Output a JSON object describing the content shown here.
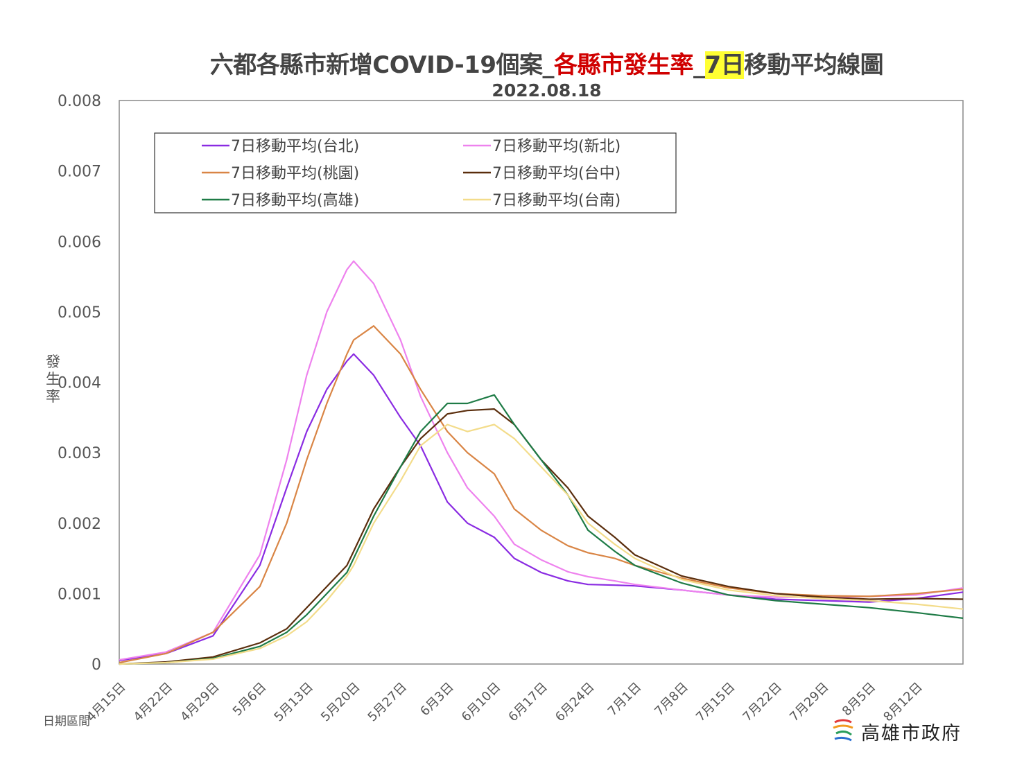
{
  "title": {
    "part1": "六都各縣市新增COVID-19個案_",
    "part2": "各縣市發生率",
    "part3": "_",
    "part4": "7日",
    "part5": "移動平均線圖"
  },
  "subtitle": "2022.08.18",
  "ylabel": "發生率",
  "xnote": "日期區間",
  "logo_text": "高雄市政府",
  "colors": {
    "taipei": "#8a2be2",
    "newtaipei": "#ee82ee",
    "taoyuan": "#d98545",
    "taichung": "#5a2d0c",
    "kaohsiung": "#1e7b46",
    "tainan": "#f3dc8a"
  },
  "chart_data": {
    "type": "line",
    "title": "六都各縣市新增COVID-19個案_各縣市發生率_7日移動平均線圖",
    "xlabel": "日期區間",
    "ylabel": "發生率",
    "ylim": [
      0,
      0.008
    ],
    "yticks": [
      "0",
      "0.001",
      "0.002",
      "0.003",
      "0.004",
      "0.005",
      "0.006",
      "0.007",
      "0.008"
    ],
    "xlim_days": [
      0,
      126
    ],
    "xtick_days": [
      0,
      7,
      14,
      21,
      28,
      35,
      42,
      49,
      56,
      63,
      70,
      77,
      84,
      91,
      98,
      105,
      112,
      119
    ],
    "xtick_labels": [
      "4月15日",
      "4月22日",
      "4月29日",
      "5月6日",
      "5月13日",
      "5月20日",
      "5月27日",
      "6月3日",
      "6月10日",
      "6月17日",
      "6月24日",
      "7月1日",
      "7月8日",
      "7月15日",
      "7月22日",
      "7月29日",
      "8月5日",
      "8月12日"
    ],
    "x_days": [
      0,
      7,
      14,
      21,
      25,
      28,
      31,
      34,
      35,
      38,
      42,
      45,
      49,
      52,
      56,
      59,
      63,
      67,
      70,
      74,
      77,
      84,
      91,
      98,
      105,
      112,
      119,
      126
    ],
    "legend_position": "top-left",
    "series": [
      {
        "name": "7日移動平均(台北)",
        "color_key": "taipei",
        "values": [
          5e-05,
          0.00015,
          0.0004,
          0.0014,
          0.0025,
          0.0033,
          0.0039,
          0.0043,
          0.0044,
          0.0041,
          0.0035,
          0.0031,
          0.0023,
          0.002,
          0.0018,
          0.0015,
          0.0013,
          0.00118,
          0.00113,
          0.00112,
          0.00111,
          0.00105,
          0.00098,
          0.00092,
          0.0009,
          0.00088,
          0.00093,
          0.00102
        ]
      },
      {
        "name": "7日移動平均(新北)",
        "color_key": "newtaipei",
        "values": [
          6e-05,
          0.00017,
          0.00045,
          0.00155,
          0.0029,
          0.0041,
          0.005,
          0.0056,
          0.00572,
          0.0054,
          0.0046,
          0.0038,
          0.003,
          0.0025,
          0.0021,
          0.0017,
          0.00148,
          0.00131,
          0.00124,
          0.00118,
          0.00113,
          0.00105,
          0.00098,
          0.00095,
          0.00095,
          0.00096,
          0.00098,
          0.00108
        ]
      },
      {
        "name": "7日移動平均(桃園)",
        "color_key": "taoyuan",
        "values": [
          2e-05,
          0.00015,
          0.00045,
          0.0011,
          0.002,
          0.0029,
          0.0037,
          0.0044,
          0.0046,
          0.0048,
          0.0044,
          0.0039,
          0.0033,
          0.003,
          0.0027,
          0.0022,
          0.0019,
          0.00168,
          0.00158,
          0.0015,
          0.0014,
          0.00122,
          0.00108,
          0.001,
          0.00097,
          0.00096,
          0.001,
          0.00106
        ]
      },
      {
        "name": "7日移動平均(台中)",
        "color_key": "taichung",
        "values": [
          0,
          3e-05,
          0.0001,
          0.0003,
          0.0005,
          0.0008,
          0.0011,
          0.0014,
          0.0016,
          0.0022,
          0.0028,
          0.0032,
          0.00355,
          0.0036,
          0.00362,
          0.0034,
          0.0029,
          0.0025,
          0.0021,
          0.0018,
          0.00155,
          0.00125,
          0.0011,
          0.001,
          0.00095,
          0.00092,
          0.00093,
          0.00092
        ]
      },
      {
        "name": "7日移動平均(高雄)",
        "color_key": "kaohsiung",
        "values": [
          0,
          2e-05,
          8e-05,
          0.00025,
          0.00045,
          0.0007,
          0.001,
          0.0013,
          0.0015,
          0.0021,
          0.0028,
          0.0033,
          0.0037,
          0.0037,
          0.00382,
          0.0034,
          0.0029,
          0.0024,
          0.0019,
          0.0016,
          0.0014,
          0.00115,
          0.00098,
          0.0009,
          0.00085,
          0.0008,
          0.00073,
          0.00065
        ]
      },
      {
        "name": "7日移動平均(台南)",
        "color_key": "tainan",
        "values": [
          0,
          2e-05,
          7e-05,
          0.00022,
          0.0004,
          0.0006,
          0.0009,
          0.00125,
          0.0014,
          0.002,
          0.0026,
          0.0031,
          0.0034,
          0.0033,
          0.0034,
          0.0032,
          0.0028,
          0.0024,
          0.002,
          0.0017,
          0.0015,
          0.0012,
          0.00105,
          0.00097,
          0.00093,
          0.0009,
          0.00085,
          0.00078
        ]
      }
    ]
  }
}
